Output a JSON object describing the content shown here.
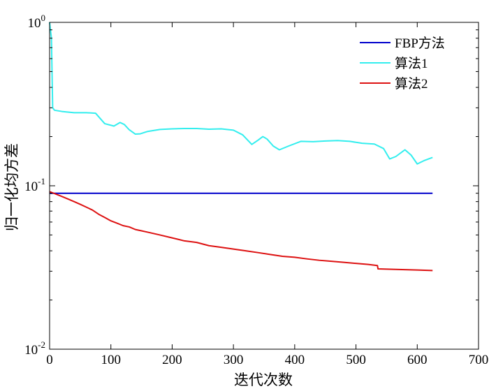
{
  "chart_data": {
    "type": "line",
    "title": "",
    "xlabel": "迭代次数",
    "ylabel": "归一化均方差",
    "xlim": [
      0,
      700
    ],
    "ylim": [
      0.01,
      1
    ],
    "yscale": "log",
    "grid": false,
    "legend_position": "top-right",
    "x_ticks": [
      {
        "value": 0,
        "label": "0"
      },
      {
        "value": 100,
        "label": "100"
      },
      {
        "value": 200,
        "label": "200"
      },
      {
        "value": 300,
        "label": "300"
      },
      {
        "value": 400,
        "label": "400"
      },
      {
        "value": 500,
        "label": "500"
      },
      {
        "value": 600,
        "label": "600"
      },
      {
        "value": 700,
        "label": "700"
      }
    ],
    "y_ticks": [
      {
        "value": 1,
        "base": "10",
        "exp": "0"
      },
      {
        "value": 0.1,
        "base": "10",
        "exp": "-1"
      },
      {
        "value": 0.01,
        "base": "10",
        "exp": "-2"
      }
    ],
    "series": [
      {
        "name": "FBP方法",
        "color": "#0000cc",
        "x": [
          0,
          625
        ],
        "y": [
          0.09,
          0.09
        ]
      },
      {
        "name": "算法1",
        "color": "#33eeee",
        "x": [
          0,
          3,
          5,
          8,
          20,
          40,
          60,
          75,
          90,
          105,
          115,
          122,
          130,
          140,
          148,
          160,
          180,
          200,
          220,
          240,
          260,
          280,
          300,
          315,
          330,
          340,
          348,
          355,
          365,
          375,
          390,
          410,
          430,
          450,
          470,
          490,
          510,
          530,
          545,
          555,
          565,
          580,
          590,
          600,
          612,
          625
        ],
        "y": [
          1.0,
          0.8,
          0.3,
          0.29,
          0.285,
          0.28,
          0.28,
          0.278,
          0.24,
          0.232,
          0.244,
          0.237,
          0.22,
          0.207,
          0.208,
          0.215,
          0.221,
          0.223,
          0.224,
          0.224,
          0.222,
          0.223,
          0.219,
          0.205,
          0.179,
          0.19,
          0.2,
          0.193,
          0.175,
          0.166,
          0.175,
          0.187,
          0.186,
          0.188,
          0.189,
          0.187,
          0.182,
          0.18,
          0.169,
          0.146,
          0.151,
          0.166,
          0.154,
          0.136,
          0.143,
          0.149
        ]
      },
      {
        "name": "算法2",
        "color": "#dd1111",
        "x": [
          0,
          10,
          20,
          30,
          40,
          50,
          60,
          70,
          80,
          90,
          100,
          110,
          120,
          130,
          140,
          150,
          160,
          180,
          200,
          220,
          240,
          260,
          280,
          300,
          320,
          340,
          360,
          380,
          400,
          420,
          440,
          460,
          480,
          500,
          520,
          535,
          536,
          560,
          600,
          625
        ],
        "y": [
          0.092,
          0.089,
          0.086,
          0.083,
          0.08,
          0.077,
          0.074,
          0.071,
          0.067,
          0.064,
          0.061,
          0.059,
          0.057,
          0.056,
          0.054,
          0.053,
          0.052,
          0.05,
          0.048,
          0.046,
          0.045,
          0.043,
          0.042,
          0.041,
          0.04,
          0.039,
          0.038,
          0.037,
          0.0365,
          0.0357,
          0.035,
          0.0345,
          0.034,
          0.0335,
          0.033,
          0.0325,
          0.031,
          0.0308,
          0.0305,
          0.0303
        ]
      }
    ]
  }
}
